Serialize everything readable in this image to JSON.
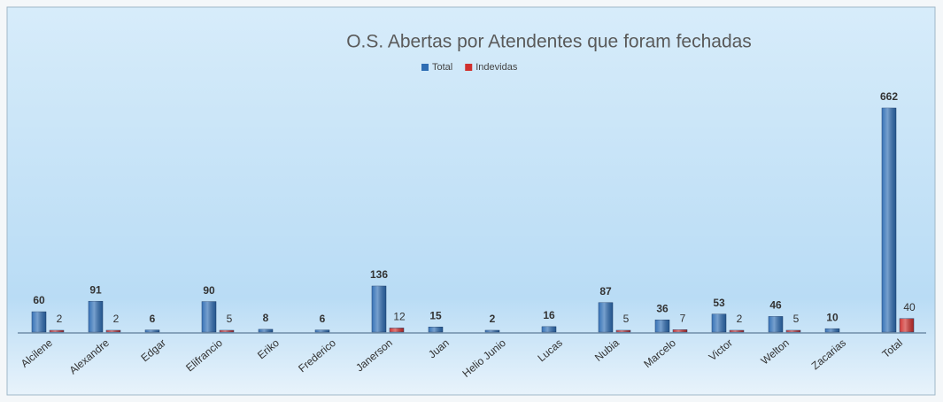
{
  "chart_data": {
    "type": "bar",
    "title": "O.S. Abertas por Atendentes que foram fechadas",
    "categories": [
      "Alcilene",
      "Alexandre",
      "Edgar",
      "Elifrancio",
      "Eriko",
      "Frederico",
      "Janerson",
      "Juan",
      "Helio Junio",
      "Lucas",
      "Nubia",
      "Marcelo",
      "Victor",
      "Welton",
      "Zacarias",
      "Total"
    ],
    "series": [
      {
        "name": "Total",
        "color": "#2e6db4",
        "values": [
          60,
          91,
          6,
          90,
          8,
          6,
          136,
          15,
          2,
          16,
          87,
          36,
          53,
          46,
          10,
          662
        ]
      },
      {
        "name": "Indevidas",
        "color": "#d0302e",
        "values": [
          2,
          2,
          null,
          5,
          null,
          null,
          12,
          null,
          null,
          null,
          5,
          7,
          2,
          5,
          null,
          40
        ]
      }
    ],
    "legend": "top"
  }
}
